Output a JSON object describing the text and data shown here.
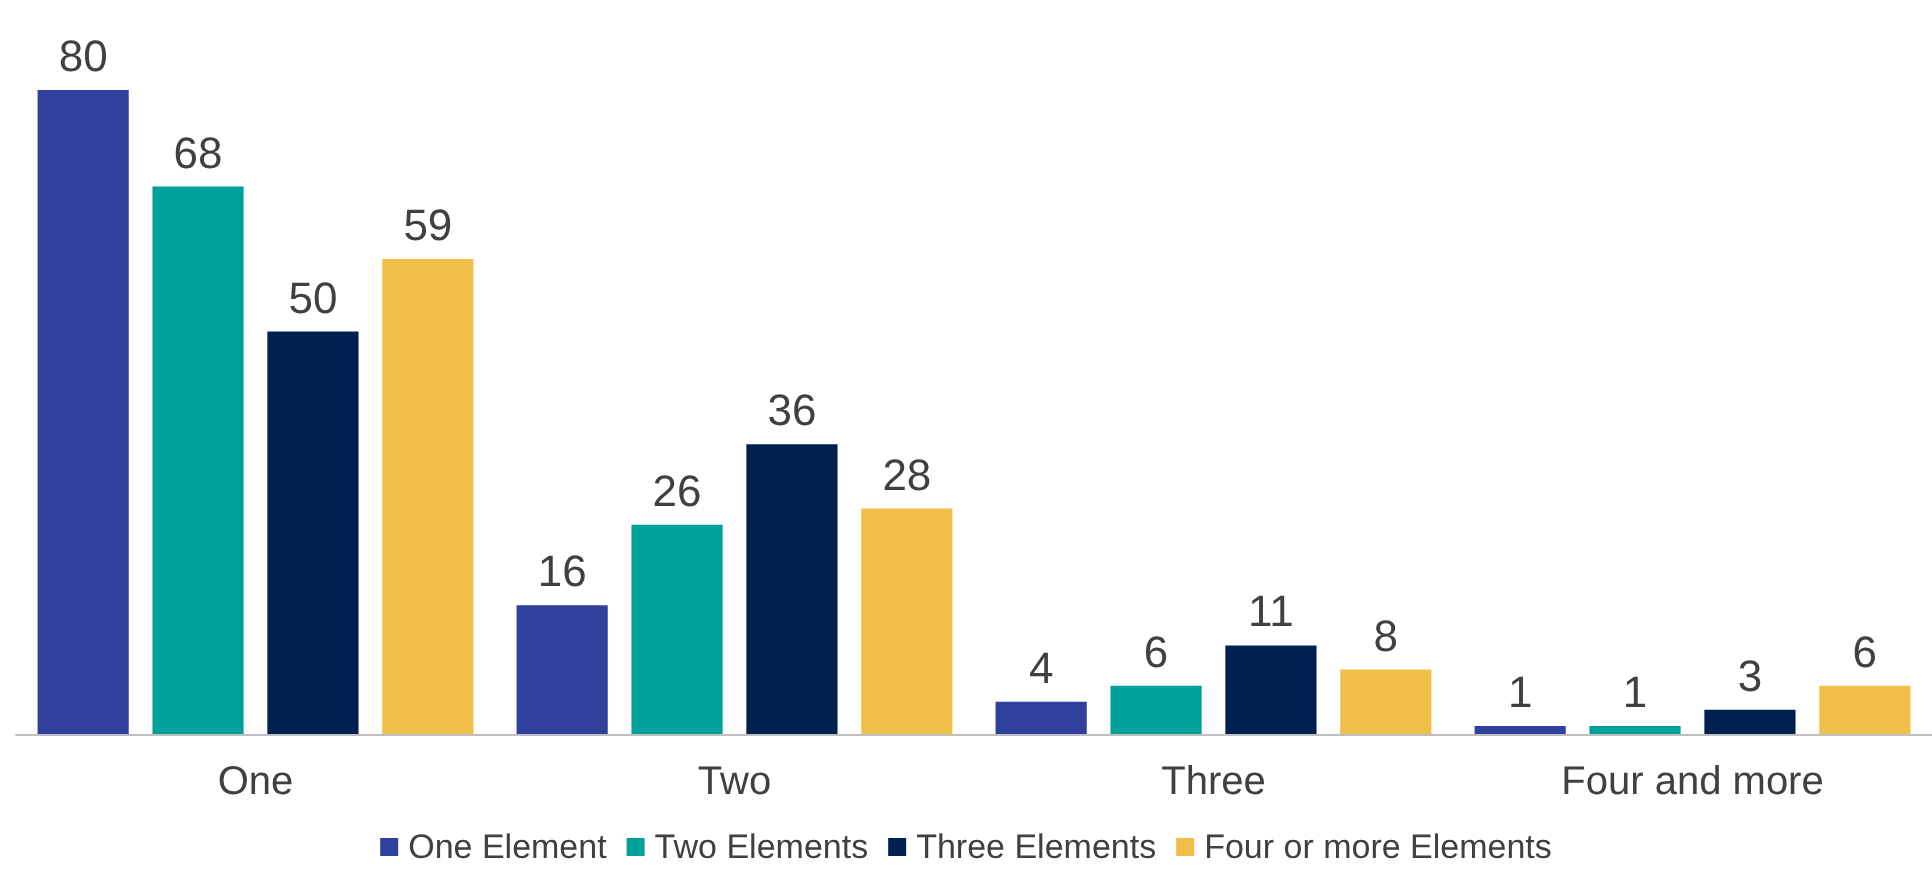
{
  "chart_data": {
    "type": "bar",
    "categories": [
      "One",
      "Two",
      "Three",
      "Four and more"
    ],
    "series": [
      {
        "name": "One Element",
        "color": "#2f419c",
        "values": [
          80,
          16,
          4,
          1
        ]
      },
      {
        "name": "Two Elements",
        "color": "#00a09b",
        "values": [
          68,
          26,
          6,
          1
        ]
      },
      {
        "name": "Three Elements",
        "color": "#002050",
        "values": [
          50,
          36,
          11,
          3
        ]
      },
      {
        "name": "Four or more Elements",
        "color": "#f0bf48",
        "values": [
          59,
          28,
          8,
          6
        ]
      }
    ],
    "data_labels": true,
    "legend": "bottom",
    "grid": false
  }
}
